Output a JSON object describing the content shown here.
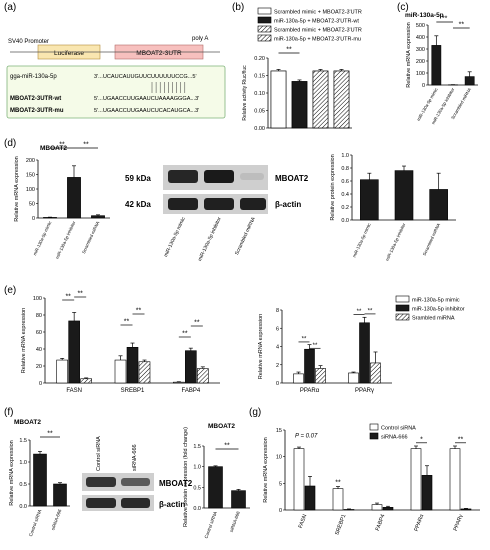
{
  "colors": {
    "luciferase": "#f9e6b0",
    "mboat2": "#f7c0be",
    "seqbox_border": "#7fb27a",
    "seqbox_bg": "#f5fbe8",
    "mirna_orange": "#e69b2c",
    "mutant_red": "#d95a2a",
    "bar_black": "#1a1a1a",
    "bar_white": "#ffffff",
    "bar_grey": "#9a9a9a"
  },
  "panels": {
    "a": {
      "label": "(a)",
      "promoter": "SV40 Promoter",
      "luciferase": "Luciferase",
      "utr": "MBOAT2-3UTR",
      "polya": "poly A",
      "mirna_name": "gga-miR-130a-5p",
      "mirna_seq": "3'...UCAUCAUUGUUCUUUUUUCCG...5'",
      "wt_name": "MBOAT2-3UTR-wt",
      "wt_seq": "5'...UGAACCUUGAAUCUAAAAGGGA...3'",
      "mu_name": "MBOAT2-3UTR-mu",
      "mu_seq": "5'...UGAACCUUGAAUCUCACAUGCA...3'"
    },
    "b": {
      "label": "(b)"
    },
    "c": {
      "label": "(c)",
      "title": "miR-130a-5p"
    },
    "d": {
      "label": "(d)",
      "title": "MBOAT2",
      "blot_kda_1": "59 kDa",
      "blot_kda_2": "42 kDa",
      "blot_name_1": "MBOAT2",
      "blot_name_2": "β-actin"
    },
    "e": {
      "label": "(e)"
    },
    "f": {
      "label": "(f)",
      "title_left": "MBOAT2",
      "title_right": "MBOAT2",
      "blot_name_1": "MBOAT2",
      "blot_name_2": "β-actin",
      "blot_lane_1": "Control siRNA",
      "blot_lane_2": "siRNA-666"
    },
    "g": {
      "label": "(g)"
    }
  },
  "chart_data": [
    {
      "id": "b",
      "type": "bar",
      "ylabel": "Relative activity Rluc/fluc",
      "ylim": [
        0,
        0.2
      ],
      "yticks": [
        "0.00",
        "0.05",
        "0.10",
        "0.15",
        "0.20"
      ],
      "series": [
        {
          "name": "Scrambled mimic + MBOAT2-3'UTR",
          "values": [
            0.163
          ]
        },
        {
          "name": "miR-130a-5p + MBOAT2-3'UTR-wt",
          "values": [
            0.133
          ]
        },
        {
          "name": "Scrambled mimic + MBOAT2-3'UTR",
          "values": [
            0.163
          ]
        },
        {
          "name": "miR-130a-5p + MBOAT2-3'UTR-mu",
          "values": [
            0.163
          ]
        }
      ],
      "annotations": [
        "**"
      ]
    },
    {
      "id": "c",
      "type": "bar",
      "title": "miR-130a-5p",
      "ylabel": "Relative mRNA expression",
      "ylim": [
        0,
        500
      ],
      "yticks": [
        "0",
        "100",
        "200",
        "300",
        "400",
        "500"
      ],
      "categories": [
        "miR-130a-5p mimic",
        "miR-130a-5p inhibitor",
        "Scrambled miRNA"
      ],
      "values": [
        330,
        2,
        70
      ],
      "errors": [
        80,
        1,
        40
      ],
      "annotations": [
        "**",
        "**"
      ]
    },
    {
      "id": "d_mrna",
      "type": "bar",
      "title": "MBOAT2",
      "ylabel": "Relative mRNA expression",
      "ylim": [
        0,
        200
      ],
      "yticks": [
        "0",
        "50",
        "100",
        "150",
        "200"
      ],
      "categories": [
        "miR-130a-5p mimic",
        "miR-130a-5p inhibitor",
        "Scrambled miRNA"
      ],
      "values": [
        2,
        140,
        8
      ],
      "errors": [
        1,
        40,
        3
      ],
      "annotations": [
        "**",
        "**"
      ]
    },
    {
      "id": "d_blot",
      "type": "bar",
      "categories": [
        "miR-130a-5p mimic",
        "miR-130a-5p inhibitor",
        "Scrambled miRNA"
      ]
    },
    {
      "id": "d_protein",
      "type": "bar",
      "ylabel": "Relative protein expression",
      "ylim": [
        0,
        1.0
      ],
      "yticks": [
        "0.0",
        "0.2",
        "0.4",
        "0.6",
        "0.8",
        "1.0"
      ],
      "categories": [
        "miR-130a-5p mimic",
        "miR-130a-5p inhibitor",
        "Scrambled miRNA"
      ],
      "values": [
        0.62,
        0.76,
        0.47
      ],
      "errors": [
        0.1,
        0.07,
        0.25
      ]
    },
    {
      "id": "e_left",
      "type": "bar",
      "ylabel": "Relative mRNA expression",
      "ylim": [
        0,
        100
      ],
      "yticks": [
        "0",
        "20",
        "40",
        "60",
        "80",
        "100"
      ],
      "categories": [
        "FASN",
        "SREBP1",
        "FABP4"
      ],
      "series": [
        {
          "name": "miR-130a-5p mimic",
          "values": [
            27,
            27,
            1
          ]
        },
        {
          "name": "miR-130a-5p inhibitor",
          "values": [
            73,
            42,
            38
          ]
        },
        {
          "name": "Srambled miRNA",
          "values": [
            5,
            25,
            17
          ]
        }
      ],
      "errors": [
        [
          2,
          5,
          0.5
        ],
        [
          10,
          5,
          3
        ],
        [
          1,
          2,
          2
        ]
      ],
      "annotations": [
        "**",
        "**",
        "**",
        "**",
        "**",
        "**"
      ]
    },
    {
      "id": "e_right",
      "type": "bar",
      "ylabel": "Relative mRNA expression",
      "ylim": [
        0,
        8
      ],
      "yticks": [
        "0",
        "2",
        "4",
        "6",
        "8"
      ],
      "categories": [
        "PPARα",
        "PPARγ"
      ],
      "series": [
        {
          "name": "miR-130a-5p mimic",
          "values": [
            1.0,
            1.1
          ]
        },
        {
          "name": "miR-130a-5p inhibitor",
          "values": [
            3.7,
            6.6
          ]
        },
        {
          "name": "Srambled miRNA",
          "values": [
            1.6,
            2.2
          ]
        }
      ],
      "errors": [
        [
          0.2,
          0.1
        ],
        [
          0.5,
          0.6
        ],
        [
          0.3,
          1.2
        ]
      ],
      "annotations": [
        "**",
        "**",
        "**",
        "**"
      ]
    },
    {
      "id": "f_mrna",
      "type": "bar",
      "title": "MBOAT2",
      "ylabel": "Relative mRNA expression",
      "ylim": [
        0,
        1.5
      ],
      "yticks": [
        "0.0",
        "0.5",
        "1.0",
        "1.5"
      ],
      "categories": [
        "Control siRNA",
        "siRNA-666"
      ],
      "values": [
        1.18,
        0.5
      ],
      "errors": [
        0.06,
        0.03
      ],
      "annotations": [
        "**"
      ]
    },
    {
      "id": "f_protein",
      "type": "bar",
      "title": "MBOAT2",
      "ylabel": "Relative protein expression (fold change)",
      "ylim": [
        0,
        1.5
      ],
      "yticks": [
        "0.0",
        "0.5",
        "1.0",
        "1.5"
      ],
      "categories": [
        "Control siRNA",
        "siRNA-666"
      ],
      "values": [
        1.0,
        0.42
      ],
      "errors": [
        0.02,
        0.03
      ],
      "annotations": [
        "**"
      ]
    },
    {
      "id": "g",
      "type": "bar",
      "ylabel": "Relative mRNA expression",
      "ylim": [
        0,
        15
      ],
      "yticks": [
        "0",
        "5",
        "10",
        "15"
      ],
      "categories": [
        "FASN",
        "SREBP1",
        "FABP4",
        "PPARα",
        "PPARγ"
      ],
      "series": [
        {
          "name": "Control siRNA",
          "values": [
            11.5,
            4.0,
            1.0,
            11.5,
            11.5
          ]
        },
        {
          "name": "siRNA-666",
          "values": [
            4.5,
            0.1,
            0.5,
            6.5,
            0.2
          ]
        }
      ],
      "errors": [
        [
          0.3,
          0.4,
          0.3,
          0.5,
          0.5
        ],
        [
          1.8,
          0.1,
          0.2,
          1.8,
          0.1
        ]
      ],
      "annotations": [
        "P = 0.07",
        "**",
        "*",
        "**"
      ]
    }
  ]
}
